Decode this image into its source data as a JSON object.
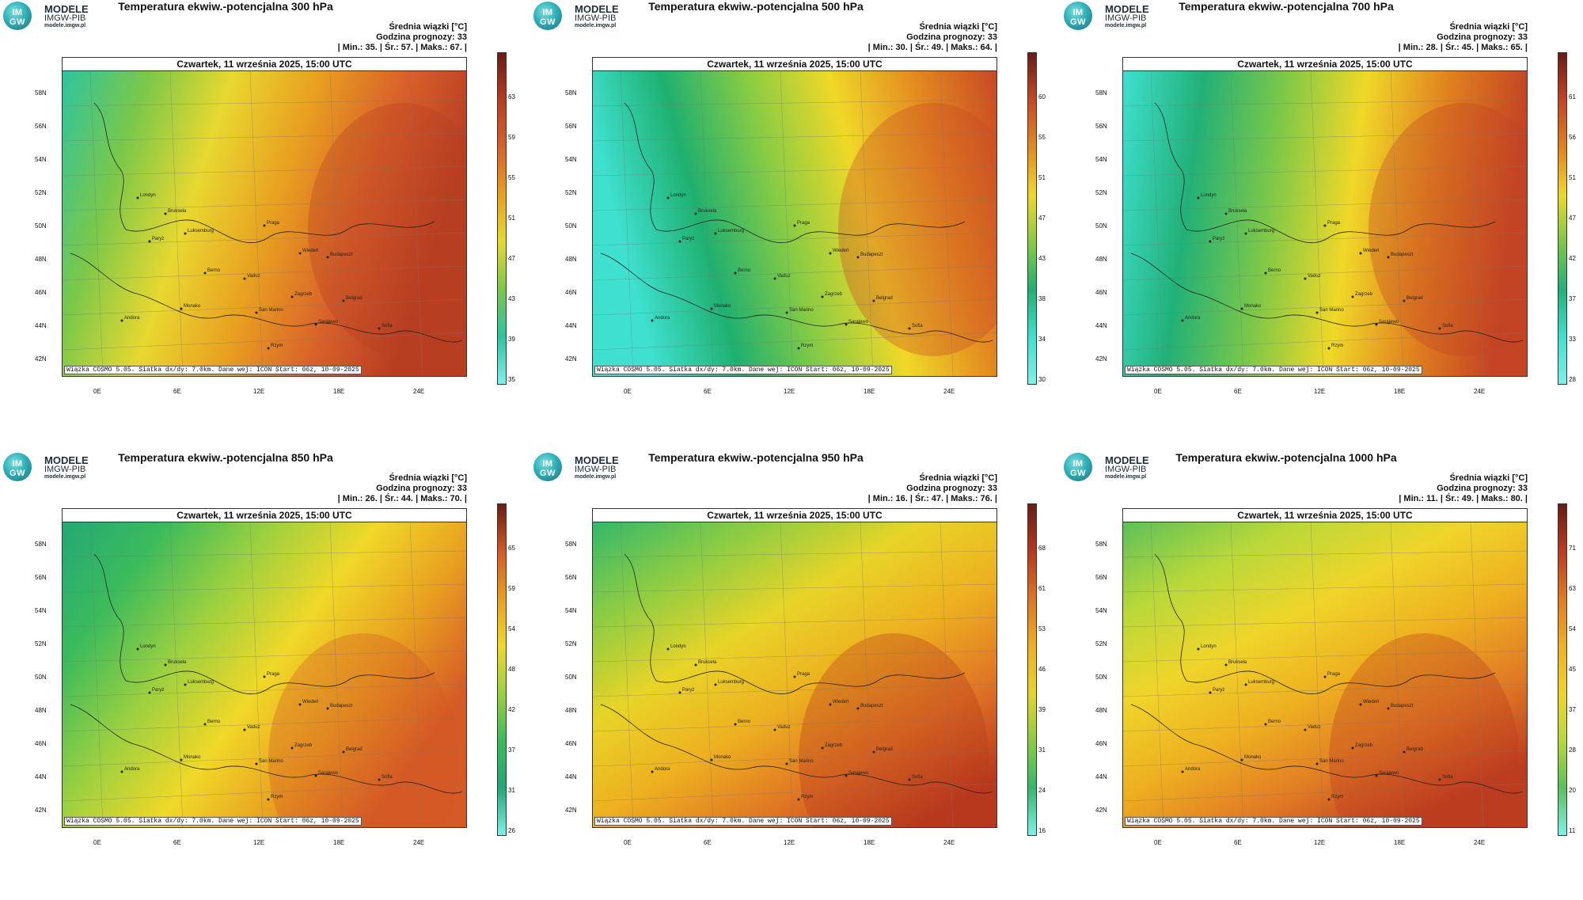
{
  "panels": [
    {
      "title": "Temperatura ekwiw.-potencjalna 300 hPa",
      "stats_line3": "| Min.:     35. | Śr.:     57. | Maks.:     67. |",
      "colorbar_ticks": [
        "63",
        "59",
        "55",
        "51",
        "47",
        "43",
        "39",
        "35"
      ],
      "palette": "p300"
    },
    {
      "title": "Temperatura ekwiw.-potencjalna 500 hPa",
      "stats_line3": "| Min.:     30. | Śr.:     49. | Maks.:     64. |",
      "colorbar_ticks": [
        "60",
        "55",
        "51",
        "47",
        "43",
        "38",
        "34",
        "30"
      ],
      "palette": "p500"
    },
    {
      "title": "Temperatura ekwiw.-potencjalna 700 hPa",
      "stats_line3": "| Min.:     28. | Śr.:     45. | Maks.:     65. |",
      "colorbar_ticks": [
        "61",
        "56",
        "51",
        "47",
        "42",
        "37",
        "33",
        "28"
      ],
      "palette": "p700"
    },
    {
      "title": "Temperatura ekwiw.-potencjalna 850 hPa",
      "stats_line3": "| Min.:     26. | Śr.:     44. | Maks.:     70. |",
      "colorbar_ticks": [
        "65",
        "59",
        "54",
        "48",
        "42",
        "37",
        "31",
        "26"
      ],
      "palette": "p850"
    },
    {
      "title": "Temperatura ekwiw.-potencjalna 950 hPa",
      "stats_line3": "| Min.:     16. | Śr.:     47. | Maks.:     76. |",
      "colorbar_ticks": [
        "68",
        "61",
        "53",
        "46",
        "39",
        "31",
        "24",
        "16"
      ],
      "palette": "p950"
    },
    {
      "title": "Temperatura ekwiw.-potencjalna 1000 hPa",
      "stats_line3": "| Min.:     11. | Śr.:     49. | Maks.:     80. |",
      "colorbar_ticks": [
        "71",
        "63",
        "54",
        "45",
        "37",
        "28",
        "20",
        "11"
      ],
      "palette": "p1000"
    }
  ],
  "common": {
    "brand1": "MODELE",
    "brand2": "IMGW-PIB",
    "brand3": "modele.imgw.pl",
    "logo_text": "IM GW",
    "stats_line1": "Średnia wiązki [°C]",
    "stats_line2": "Godzina prognozy: 33",
    "date": "Czwartek, 11 września 2025, 15:00 UTC",
    "footer": "Wiązka COSMO 5.05. Siatka dx/dy: 7.0km. Dane wej: ICON Start: 06z, 10-09-2025",
    "lat_labels": [
      "58N",
      "56N",
      "54N",
      "52N",
      "50N",
      "48N",
      "46N",
      "44N",
      "42N"
    ],
    "lon_labels": [
      "0E",
      "6E",
      "12E",
      "18E",
      "24E"
    ],
    "cities": [
      "Londyn",
      "Bruksela",
      "Luksemburg",
      "Paryż",
      "Praga",
      "Wiedeń",
      "Budapeszt",
      "Berno",
      "Vaduz",
      "Zagrzeb",
      "Belgrad",
      "Monako",
      "San Marino",
      "Sarajewo",
      "Andora",
      "Sofia",
      "Rzym"
    ]
  },
  "colors": {
    "p300": [
      "#2ec4a0",
      "#79c84a",
      "#e8d830",
      "#e8a020",
      "#d9622a",
      "#b83e22"
    ],
    "p500": [
      "#3fe0d0",
      "#1fb070",
      "#88cc44",
      "#f0d828",
      "#e38a20",
      "#c84824"
    ],
    "p700": [
      "#3fe0d0",
      "#22b078",
      "#7cc848",
      "#f0d828",
      "#e0821f",
      "#c44424"
    ],
    "p850": [
      "#23a877",
      "#3cbb5c",
      "#9cd040",
      "#f0d828",
      "#e8a020",
      "#d55a26"
    ],
    "p950": [
      "#33b86a",
      "#8ccc44",
      "#e8d428",
      "#edb020",
      "#df7424",
      "#b8381e"
    ],
    "p1000": [
      "#5cc05a",
      "#b9d83a",
      "#efd52a",
      "#eeb020",
      "#e07a24",
      "#bc3c20"
    ]
  }
}
